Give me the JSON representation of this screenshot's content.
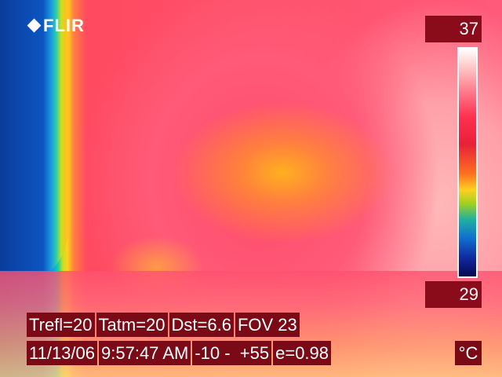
{
  "brand": {
    "name": "FLIR"
  },
  "scale": {
    "max": "37",
    "min": "29",
    "unit": "°C"
  },
  "info_row1": [
    {
      "label": "Trefl=20"
    },
    {
      "label": "Tatm=20"
    },
    {
      "label": "Dst=6.6"
    },
    {
      "label": "FOV 23"
    }
  ],
  "info_row2": [
    {
      "label": "11/13/06"
    },
    {
      "label": "9:57:47 AM"
    },
    {
      "label": "-10 -  +55"
    },
    {
      "label": "e=0.98"
    }
  ]
}
